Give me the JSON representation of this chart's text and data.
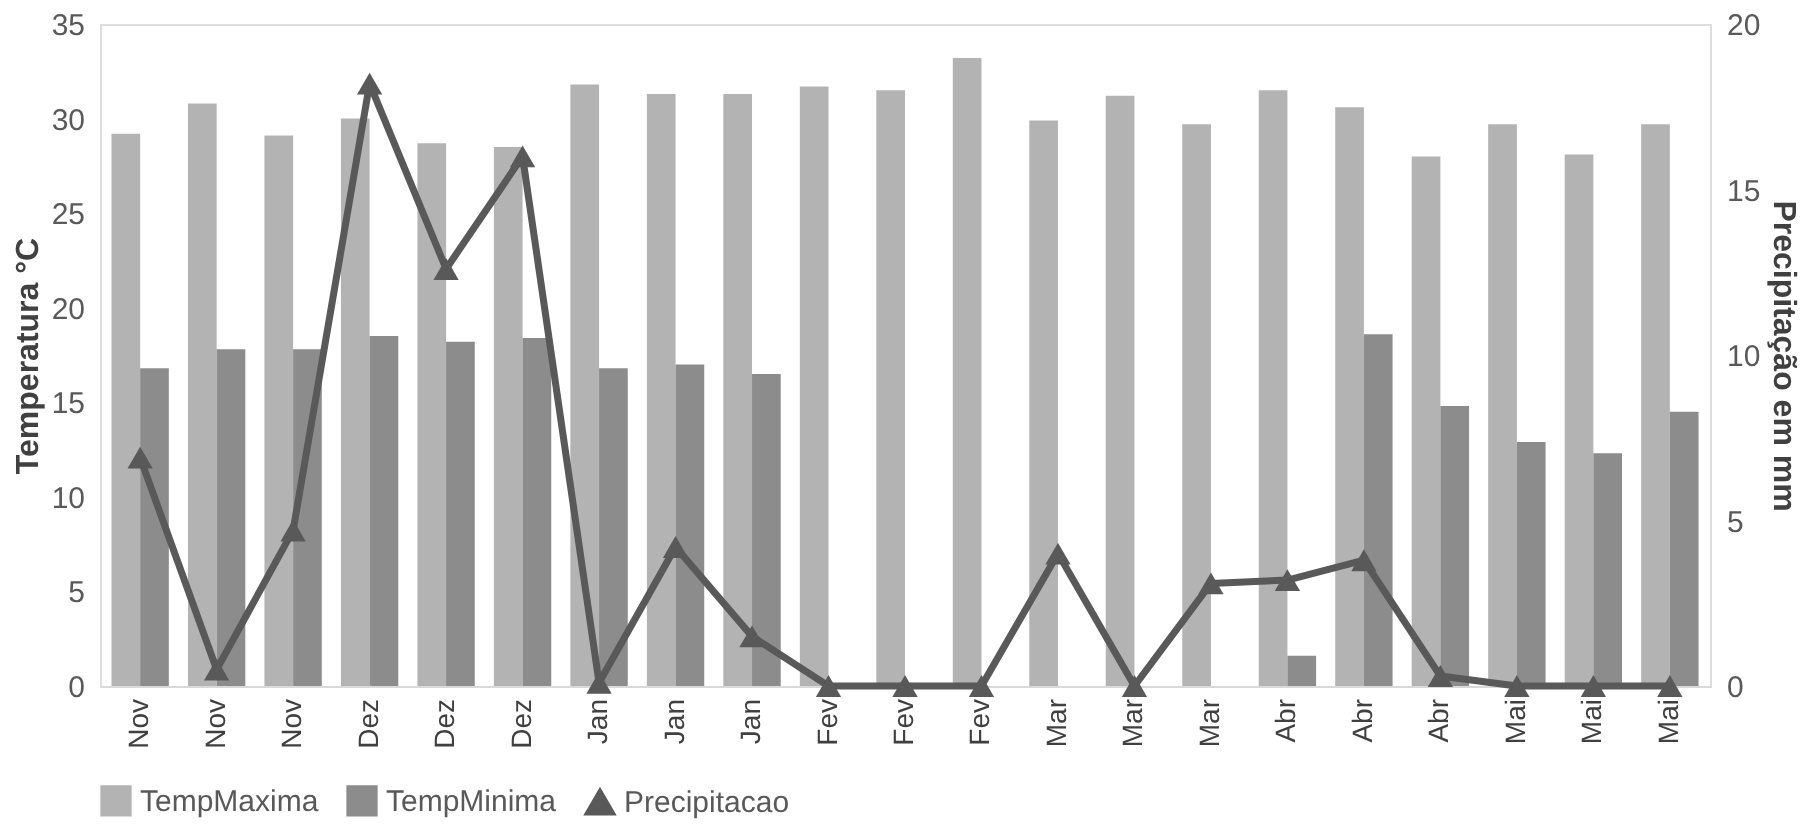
{
  "chart_data": {
    "type": "bar",
    "categories": [
      "Nov",
      "Nov",
      "Nov",
      "Dez",
      "Dez",
      "Dez",
      "Jan",
      "Jan",
      "Jan",
      "Fev",
      "Fev",
      "Fev",
      "Mar",
      "Mar",
      "Mar",
      "Abr",
      "Abr",
      "Abr",
      "Mai",
      "Mai",
      "Mai"
    ],
    "ylabel": "Temperatura °C",
    "y2label": "Precipitação em mm",
    "ylim": [
      0,
      35
    ],
    "yticks": [
      0,
      5,
      10,
      15,
      20,
      25,
      30,
      35
    ],
    "y2lim": [
      0,
      20
    ],
    "y2ticks": [
      0,
      5,
      10,
      15,
      20
    ],
    "series": [
      {
        "name": "TempMaxima",
        "color": "#b3b3b3",
        "values": [
          29.2,
          30.8,
          29.1,
          30.0,
          28.7,
          28.5,
          31.8,
          31.3,
          31.3,
          31.7,
          31.5,
          33.2,
          29.9,
          31.2,
          29.7,
          31.5,
          30.6,
          28.0,
          29.7,
          28.1,
          29.7
        ]
      },
      {
        "name": "TempMinima",
        "color": "#8c8c8c",
        "values": [
          16.8,
          17.8,
          17.8,
          18.5,
          18.2,
          18.4,
          16.8,
          17.0,
          16.5,
          null,
          null,
          null,
          null,
          null,
          null,
          1.6,
          18.6,
          14.8,
          12.9,
          12.3,
          14.5
        ]
      },
      {
        "name": "Precipitacao",
        "color": "#595959",
        "type": "line",
        "axis": "y2",
        "marker": "triangle",
        "values": [
          6.9,
          0.5,
          4.7,
          18.2,
          12.6,
          16.0,
          0.1,
          4.2,
          1.5,
          0,
          0,
          0,
          4.0,
          0,
          3.1,
          3.2,
          3.8,
          0.3,
          0,
          0,
          0
        ]
      }
    ],
    "legend": "bottom",
    "grid": false
  }
}
